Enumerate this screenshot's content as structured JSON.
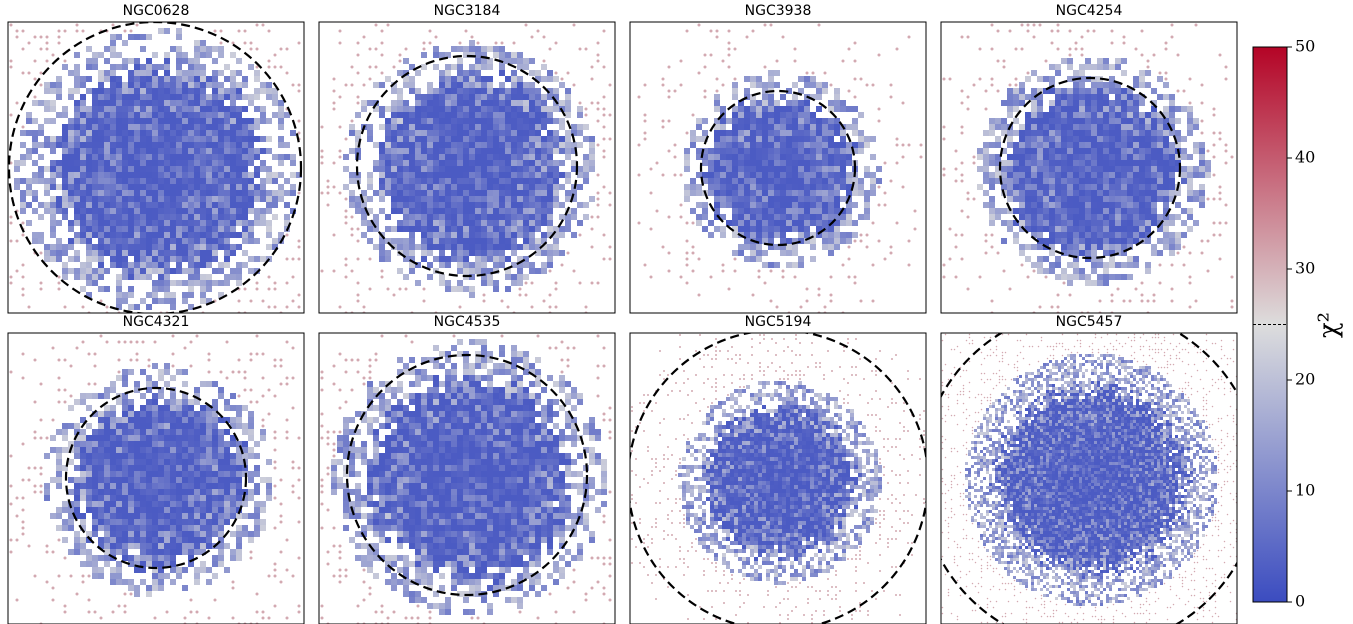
{
  "chart_data": {
    "type": "image-grid",
    "panels": [
      {
        "title": "NGC0628"
      },
      {
        "title": "NGC3184"
      },
      {
        "title": "NGC3938"
      },
      {
        "title": "NGC4254"
      },
      {
        "title": "NGC4321"
      },
      {
        "title": "NGC4535"
      },
      {
        "title": "NGC5194"
      },
      {
        "title": "NGC5457"
      }
    ],
    "colorbar": {
      "label": "χ²",
      "clim": [
        0,
        50
      ],
      "ticks": [
        0,
        10,
        20,
        30,
        40,
        50
      ],
      "threshold": 25,
      "colors": [
        "#3b4cc0",
        "#dddddd",
        "#b40426"
      ]
    }
  }
}
